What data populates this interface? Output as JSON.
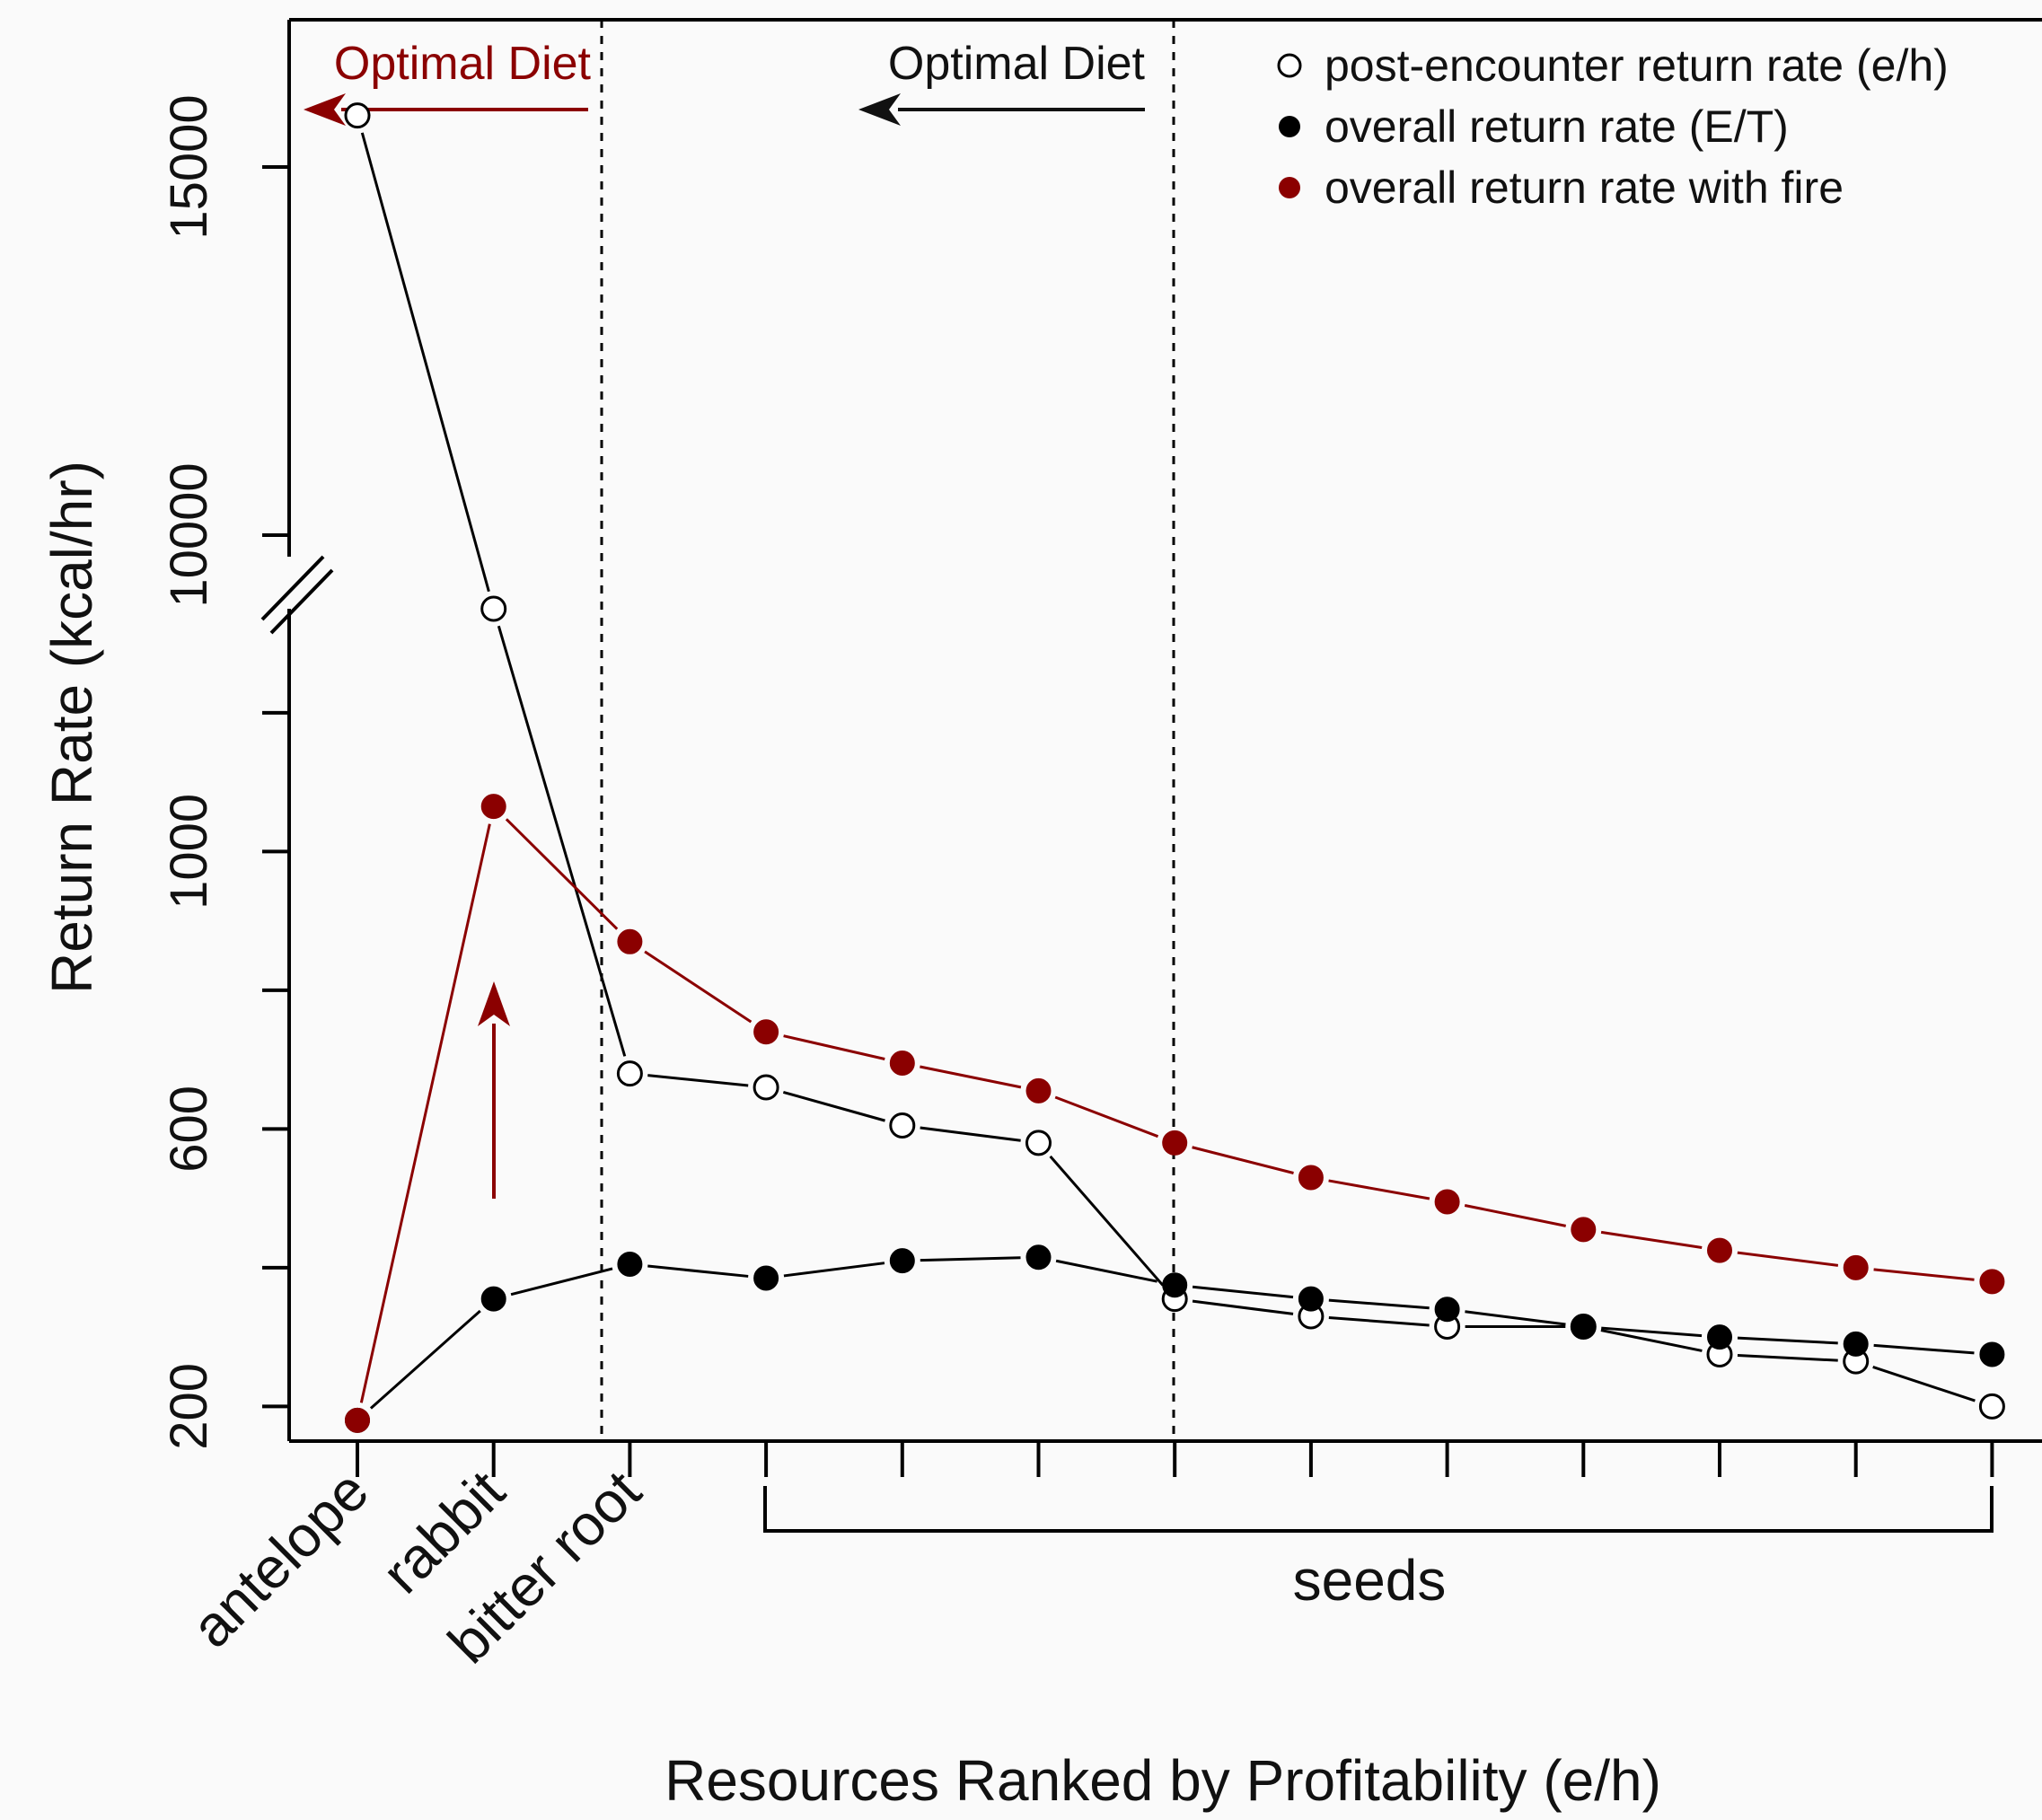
{
  "chart_data": {
    "type": "line",
    "xlabel": "Resources Ranked by Profitability (e/h)",
    "ylabel": "Return Rate (kcal/hr)",
    "x": [
      1,
      2,
      3,
      4,
      5,
      6,
      7,
      8,
      9,
      10,
      11,
      12,
      13
    ],
    "category_labels": [
      "antelope",
      "rabbit",
      "bitter root"
    ],
    "group_label": "seeds",
    "y_axis": {
      "break": true,
      "lower_range": [
        150,
        1350
      ],
      "upper_range": [
        8000,
        17000
      ],
      "lower_ticks": [
        200,
        600,
        1000
      ],
      "upper_ticks": [
        10000,
        15000
      ]
    },
    "series": [
      {
        "name": "post-encounter return rate (e/h)",
        "marker": "open",
        "color": "#000000",
        "values": [
          15700,
          9000,
          680,
          660,
          605,
          580,
          355,
          330,
          315,
          315,
          275,
          265,
          200
        ]
      },
      {
        "name": "overall return rate (E/T)",
        "marker": "filled",
        "color": "#000000",
        "values": [
          180,
          355,
          405,
          385,
          410,
          415,
          375,
          355,
          340,
          315,
          300,
          290,
          275
        ]
      },
      {
        "name": "overall return rate with fire",
        "marker": "filled",
        "color": "#8b0000",
        "values": [
          180,
          1065,
          870,
          740,
          695,
          655,
          580,
          530,
          495,
          455,
          425,
          400,
          380
        ]
      }
    ],
    "annotations": {
      "optimal_diet_fire": "Optimal Diet",
      "optimal_diet": "Optimal Diet"
    },
    "legend_position": "top-right",
    "grid": false
  }
}
